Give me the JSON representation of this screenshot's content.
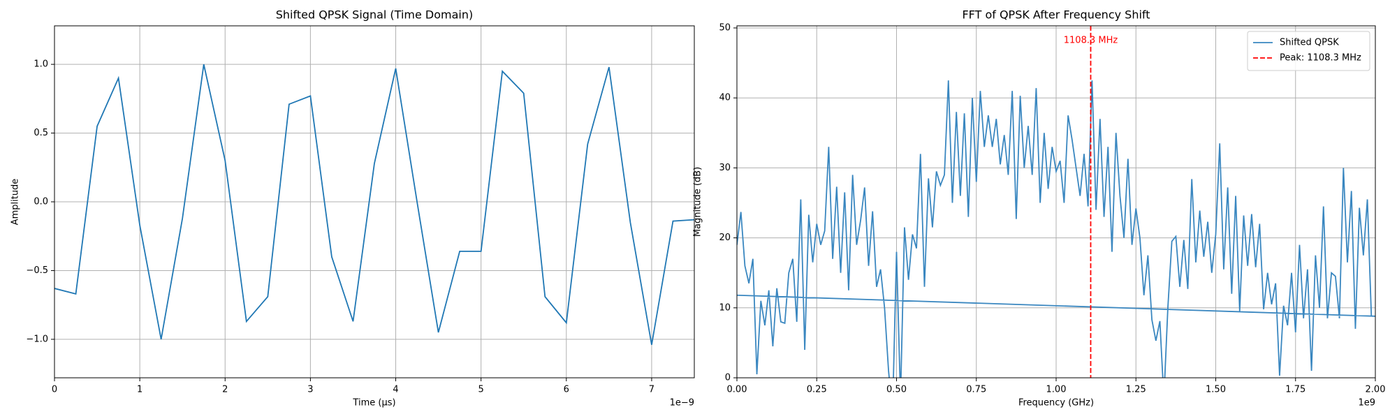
{
  "chart_data": [
    {
      "type": "line",
      "title": "Shifted QPSK Signal (Time Domain)",
      "xlabel": "Time (µs)",
      "ylabel": "Amplitude",
      "x_offset": "1e−9",
      "x": [
        0,
        0.25,
        0.5,
        0.75,
        1,
        1.25,
        1.5,
        1.75,
        2,
        2.25,
        2.5,
        2.75,
        3,
        3.25,
        3.5,
        3.75,
        4,
        4.25,
        4.5,
        4.75,
        5,
        5.25,
        5.5,
        5.75,
        6,
        6.25,
        6.5,
        6.75,
        7,
        7.25,
        7.5
      ],
      "values": [
        -0.63,
        -0.67,
        0.55,
        0.9,
        -0.17,
        -1.0,
        -0.12,
        1.0,
        0.3,
        -0.87,
        -0.69,
        0.71,
        0.77,
        -0.4,
        -0.87,
        0.28,
        0.97,
        0.0,
        -0.95,
        -0.36,
        -0.36,
        0.95,
        0.79,
        -0.69,
        -0.88,
        0.42,
        0.98,
        -0.15,
        -1.04,
        -0.14,
        -0.13
      ],
      "color": "#1f77b4",
      "xlim": [
        0,
        7.5
      ],
      "xticks": [
        0,
        1,
        2,
        3,
        4,
        5,
        6,
        7
      ],
      "ylim": [
        -1.28,
        1.28
      ],
      "yticks": [
        {
          "value": -1,
          "label": "−1.0"
        },
        {
          "value": -0.5,
          "label": "−0.5"
        },
        {
          "value": 0,
          "label": "0.0"
        },
        {
          "value": 0.5,
          "label": "0.5"
        },
        {
          "value": 1,
          "label": "1.0"
        }
      ],
      "grid": true
    },
    {
      "type": "line",
      "title": "FFT of QPSK After Frequency Shift",
      "xlabel": "Frequency (GHz)",
      "ylabel": "Magnitude (dB)",
      "x_offset": "1e9",
      "x": [
        0,
        0.0125,
        0.025,
        0.0375,
        0.05,
        0.0625,
        0.075,
        0.0875,
        0.1,
        0.1125,
        0.125,
        0.1375,
        0.15,
        0.1625,
        0.175,
        0.1875,
        0.2,
        0.2125,
        0.225,
        0.2375,
        0.25,
        0.2625,
        0.275,
        0.2875,
        0.3,
        0.3125,
        0.325,
        0.3375,
        0.35,
        0.3625,
        0.375,
        0.3875,
        0.4,
        0.4125,
        0.425,
        0.4375,
        0.45,
        0.4625,
        0.475,
        0.4875,
        0.5,
        0.5125,
        0.525,
        0.5375,
        0.55,
        0.5625,
        0.575,
        0.5875,
        0.6,
        0.6125,
        0.625,
        0.6375,
        0.65,
        0.6625,
        0.675,
        0.6875,
        0.7,
        0.7125,
        0.725,
        0.7375,
        0.75,
        0.7625,
        0.775,
        0.7875,
        0.8,
        0.8125,
        0.825,
        0.8375,
        0.85,
        0.8625,
        0.875,
        0.8875,
        0.9,
        0.9125,
        0.925,
        0.9375,
        0.95,
        0.9625,
        0.975,
        0.9875,
        1,
        1.0125,
        1.025,
        1.0375,
        1.05,
        1.0625,
        1.075,
        1.0875,
        1.1,
        1.1125,
        1.125,
        1.1375,
        1.15,
        1.1625,
        1.175,
        1.1875,
        1.2,
        1.2125,
        1.225,
        1.2375,
        1.25,
        1.2625,
        1.275,
        1.2875,
        1.3,
        1.3125,
        1.325,
        1.3375,
        1.35,
        1.3625,
        1.375,
        1.3875,
        1.4,
        1.4125,
        1.425,
        1.4375,
        1.45,
        1.4625,
        1.475,
        1.4875,
        1.5,
        1.5125,
        1.525,
        1.5375,
        1.55,
        1.5625,
        1.575,
        1.5875,
        1.6,
        1.6125,
        1.625,
        1.6375,
        1.65,
        1.6625,
        1.675,
        1.6875,
        1.7,
        1.7125,
        1.725,
        1.7375,
        1.75,
        1.7625,
        1.775,
        1.7875,
        1.8,
        1.8125,
        1.825,
        1.8375,
        1.85,
        1.8625,
        1.875,
        1.8875,
        1.9,
        1.9125,
        1.925,
        1.9375,
        1.95,
        1.9625,
        1.975,
        1.9875,
        2,
        0
      ],
      "series": [
        {
          "name": "Shifted QPSK",
          "color": "#3a87c0",
          "values": [
            19,
            23.7,
            16,
            13.5,
            17,
            0.5,
            11,
            7.5,
            12.5,
            4.5,
            12.8,
            8,
            7.8,
            15,
            17,
            8,
            25.5,
            4,
            23.3,
            16.5,
            22,
            19,
            21,
            33,
            17,
            27.3,
            15,
            26.5,
            12.5,
            29,
            19,
            22.5,
            27.2,
            16,
            23.8,
            13,
            15.5,
            10,
            1,
            -5,
            18,
            -3,
            21.5,
            14,
            20.5,
            18.5,
            32,
            13,
            28.5,
            21.5,
            29.5,
            27.5,
            29,
            42.5,
            25,
            38,
            26,
            37.8,
            23,
            40,
            28,
            41,
            33,
            37.5,
            33,
            37,
            30.5,
            34.7,
            29,
            41,
            22.7,
            40.3,
            30,
            36,
            29,
            41.4,
            25,
            35,
            27,
            33,
            29.5,
            31,
            25,
            37.5,
            34,
            30,
            26,
            32,
            24.5,
            42.5,
            24,
            37,
            23,
            33,
            18,
            35,
            26,
            20,
            31.3,
            19,
            24.2,
            20,
            11.8,
            17.5,
            8.3,
            5.3,
            8.1,
            -3,
            10,
            19.5,
            20.2,
            13,
            19.7,
            12.7,
            28.4,
            16.5,
            23.9,
            17.3,
            22.3,
            15,
            20.5,
            33.5,
            15.5,
            27.2,
            12,
            26,
            9.5,
            23.2,
            16,
            23.4,
            15.8,
            22,
            9.8,
            15,
            10.5,
            13.5,
            0.3,
            10.3,
            7.5,
            15,
            6.5,
            19,
            8.5,
            15.5,
            1,
            17.5,
            10,
            24.5,
            8.5,
            15,
            14.5,
            8.5,
            30,
            16.5,
            26.7,
            7,
            24.3,
            17.5,
            25.5,
            8.8,
            8.8,
            11.8
          ]
        }
      ],
      "vlines": [
        {
          "x": 1.1083,
          "name": "Peak: 1108.3 MHz",
          "label": "1108.3 MHz",
          "color": "#ff0000"
        }
      ],
      "legend": "upper right",
      "xlim": [
        0,
        2
      ],
      "xticks": [
        {
          "value": 0,
          "label": "0.00"
        },
        {
          "value": 0.25,
          "label": "0.25"
        },
        {
          "value": 0.5,
          "label": "0.50"
        },
        {
          "value": 0.75,
          "label": "0.75"
        },
        {
          "value": 1,
          "label": "1.00"
        },
        {
          "value": 1.25,
          "label": "1.25"
        },
        {
          "value": 1.5,
          "label": "1.50"
        },
        {
          "value": 1.75,
          "label": "1.75"
        },
        {
          "value": 2,
          "label": "2.00"
        }
      ],
      "ylim": [
        0,
        50.3
      ],
      "yticks": [
        0,
        10,
        20,
        30,
        40,
        50
      ],
      "grid": true
    }
  ]
}
